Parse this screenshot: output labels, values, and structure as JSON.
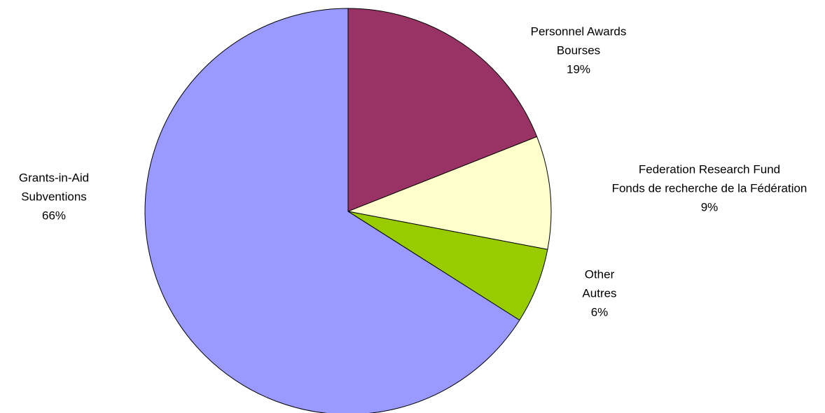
{
  "chart_data": {
    "type": "pie",
    "categories": [
      [
        "Personnel Awards",
        "Bourses"
      ],
      [
        "Federation Research Fund",
        "Fonds de recherche de la Fédération"
      ],
      [
        "Other",
        "Autres"
      ],
      [
        "Grants-in-Aid",
        "Subventions"
      ]
    ],
    "values": [
      19,
      9,
      6,
      66
    ],
    "value_labels": [
      "19%",
      "9%",
      "6%",
      "66%"
    ],
    "colors": [
      "#993366",
      "#ffffcc",
      "#99cc00",
      "#9999ff"
    ]
  }
}
